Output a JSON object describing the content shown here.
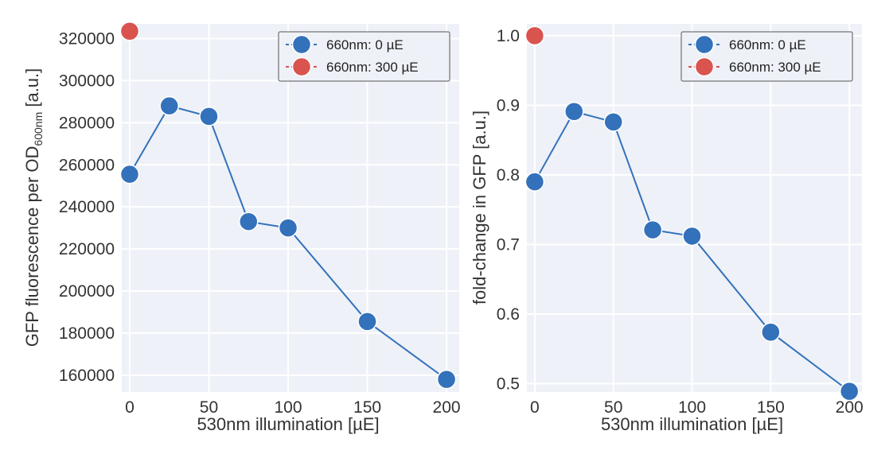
{
  "colors": {
    "plot_bg": "#eef1f7",
    "grid": "#ffffff",
    "series_0": "#3371bb",
    "series_1": "#d9534f"
  },
  "chart_data": [
    {
      "type": "scatter",
      "xlabel": "530nm illumination [µE]",
      "ylabel": "GFP fluorescence per OD",
      "ylabel_subscript": "600nm",
      "ylabel_suffix": " [a.u.]",
      "xlim": [
        -5,
        208
      ],
      "ylim": [
        152000,
        327000
      ],
      "x_ticks": [
        0,
        50,
        100,
        150,
        200
      ],
      "y_ticks": [
        160000,
        180000,
        200000,
        220000,
        240000,
        260000,
        280000,
        300000,
        320000
      ],
      "y_tick_labels": [
        "160000",
        "180000",
        "200000",
        "220000",
        "240000",
        "260000",
        "280000",
        "300000",
        "320000"
      ],
      "grid": true,
      "legend_position": "top-right",
      "series": [
        {
          "name": "660nm: 0 µE",
          "color": "#3371bb",
          "line": true,
          "x": [
            0,
            25,
            50,
            75,
            100,
            150,
            200
          ],
          "y": [
            255500,
            288000,
            283000,
            233000,
            230000,
            185500,
            158000
          ]
        },
        {
          "name": "660nm: 300 µE",
          "color": "#d9534f",
          "line": false,
          "x": [
            0
          ],
          "y": [
            323500
          ]
        }
      ]
    },
    {
      "type": "scatter",
      "xlabel": "530nm illumination [µE]",
      "ylabel": "fold-change in GFP [a.u.]",
      "xlim": [
        -5,
        208
      ],
      "ylim": [
        0.488,
        1.017
      ],
      "x_ticks": [
        0,
        50,
        100,
        150,
        200
      ],
      "y_ticks": [
        0.5,
        0.6,
        0.7,
        0.8,
        0.9,
        1.0
      ],
      "y_tick_labels": [
        "0.5",
        "0.6",
        "0.7",
        "0.8",
        "0.9",
        "1.0"
      ],
      "grid": true,
      "legend_position": "top-right",
      "series": [
        {
          "name": "660nm: 0 µE",
          "color": "#3371bb",
          "line": true,
          "x": [
            0,
            25,
            50,
            75,
            100,
            150,
            200
          ],
          "y": [
            0.79,
            0.891,
            0.876,
            0.721,
            0.712,
            0.574,
            0.489
          ]
        },
        {
          "name": "660nm: 300 µE",
          "color": "#d9534f",
          "line": false,
          "x": [
            0
          ],
          "y": [
            1.0
          ]
        }
      ]
    }
  ]
}
